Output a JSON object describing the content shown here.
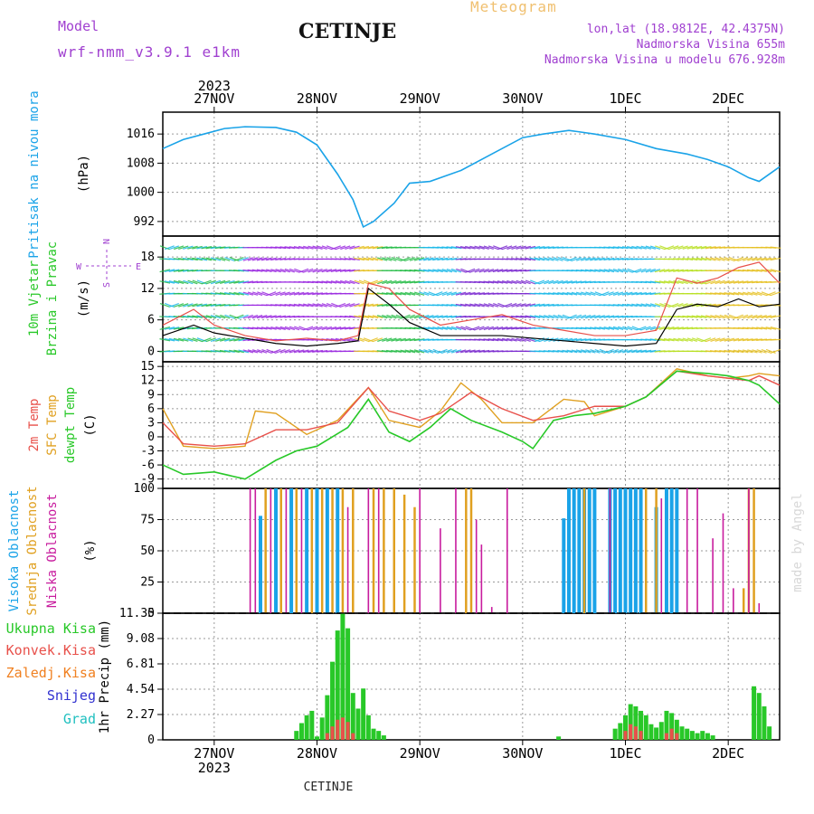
{
  "header": {
    "model_label": "Model",
    "model_name": "wrf-nmm_v3.9.1 e1km",
    "title": "CETINJE",
    "meteogram": "Meteogram",
    "lonlat": "lon,lat (18.9812E, 42.4375N)",
    "elevation": "Nadmorska Visina 655m",
    "elevation_model": "Nadmorska Visina u modelu 676.928m"
  },
  "footer": {
    "station": "CETINJE",
    "credit": "made by Angel"
  },
  "colors": {
    "pressure": "#1aa3e8",
    "wind_speed": "#000000",
    "wind_gust": "#e8504a",
    "temp_2m": "#e8504a",
    "temp_sfc": "#e0a020",
    "dewpt": "#28c828",
    "cloud_high": "#1aa3e8",
    "cloud_mid": "#e0a020",
    "cloud_low": "#c81c9e",
    "precip_total": "#28c828",
    "precip_conv": "#e8504a",
    "precip_frz": "#f08020",
    "precip_snow": "#3030d0",
    "precip_grad": "#20c0c0",
    "purple": "#a040d0"
  },
  "chart_data": [
    {
      "type": "line",
      "panel": "pressure",
      "ylabel_main": "Pritisak na nivou mora",
      "unit": "(hPa)",
      "ylim": [
        988,
        1022
      ],
      "yticks": [
        "992",
        "1000",
        "1008",
        "1016"
      ],
      "x_start_day": 26.5,
      "x_end_day": 32.5,
      "series": [
        {
          "x": [
            26.5,
            26.7,
            26.9,
            27.1,
            27.3,
            27.6,
            27.8,
            28.0,
            28.2,
            28.35,
            28.45,
            28.55,
            28.75,
            28.9,
            29.1,
            29.4,
            29.7,
            30.0,
            30.2,
            30.45,
            30.7,
            31.0,
            31.3,
            31.6,
            31.8,
            32.0,
            32.2,
            32.3,
            32.5
          ],
          "y": [
            1012,
            1014.5,
            1016,
            1017.5,
            1018,
            1017.8,
            1016.5,
            1013,
            1005,
            998,
            990.5,
            992,
            997,
            1002.5,
            1003,
            1006,
            1010.5,
            1015,
            1016,
            1017,
            1016,
            1014.5,
            1012,
            1010.5,
            1009,
            1007,
            1004,
            1003,
            1007
          ]
        }
      ]
    },
    {
      "type": "line",
      "panel": "wind",
      "ylabel_main": "10m Vjetar",
      "ylabel_sub": "Brzina i Pravac",
      "unit": "(m/s)",
      "compass": [
        "N",
        "S",
        "W",
        "E"
      ],
      "ylim": [
        -2,
        22
      ],
      "yticks": [
        "0",
        "6",
        "12",
        "18"
      ],
      "series": [
        {
          "name": "speed",
          "x": [
            26.5,
            26.8,
            27.0,
            27.3,
            27.6,
            27.9,
            28.2,
            28.4,
            28.5,
            28.7,
            28.9,
            29.2,
            29.5,
            29.8,
            30.1,
            30.4,
            30.7,
            31.0,
            31.3,
            31.5,
            31.7,
            31.9,
            32.1,
            32.3,
            32.5
          ],
          "y": [
            3,
            5,
            3.5,
            2.5,
            1.5,
            1,
            1.5,
            2,
            12,
            9,
            5.5,
            3,
            3,
            3,
            2.5,
            2,
            1.5,
            1,
            1.5,
            8,
            9,
            8.5,
            10,
            8.5,
            9
          ]
        },
        {
          "name": "gust",
          "x": [
            26.5,
            26.8,
            27.0,
            27.3,
            27.6,
            27.9,
            28.2,
            28.4,
            28.5,
            28.7,
            28.9,
            29.2,
            29.5,
            29.8,
            30.1,
            30.4,
            30.7,
            31.0,
            31.3,
            31.5,
            31.7,
            31.9,
            32.1,
            32.3,
            32.5
          ],
          "y": [
            5,
            8,
            5,
            3,
            2,
            2.5,
            2,
            3,
            13,
            12,
            8,
            5,
            6,
            7,
            5,
            4,
            3,
            3,
            4,
            14,
            13,
            14,
            16,
            17,
            13
          ]
        }
      ]
    },
    {
      "type": "line",
      "panel": "temperature",
      "ylabels": [
        "2m Temp",
        "SFC Temp",
        "dewpt Temp"
      ],
      "unit": "(C)",
      "ylim": [
        -11,
        16
      ],
      "yticks": [
        "-9",
        "-6",
        "-3",
        "0",
        "3",
        "6",
        "9",
        "12",
        "15"
      ],
      "series": [
        {
          "name": "2m Temp",
          "x": [
            26.5,
            26.7,
            27.0,
            27.3,
            27.6,
            27.9,
            28.2,
            28.5,
            28.7,
            29.0,
            29.2,
            29.5,
            29.8,
            30.1,
            30.4,
            30.7,
            31.0,
            31.2,
            31.5,
            31.8,
            32.0,
            32.2,
            32.3,
            32.5
          ],
          "y": [
            3,
            -1.5,
            -2,
            -1.5,
            1.5,
            1.5,
            3,
            10.5,
            5.5,
            3.5,
            5,
            9.5,
            6,
            3.5,
            4.5,
            6.5,
            6.5,
            8.5,
            14,
            13,
            12.5,
            12,
            13,
            11
          ]
        },
        {
          "name": "SFC Temp",
          "x": [
            26.5,
            26.7,
            27.0,
            27.3,
            27.4,
            27.6,
            27.9,
            28.2,
            28.5,
            28.7,
            29.0,
            29.2,
            29.4,
            29.6,
            29.8,
            30.1,
            30.4,
            30.6,
            30.7,
            31.0,
            31.2,
            31.5,
            31.8,
            32.0,
            32.2,
            32.3,
            32.5
          ],
          "y": [
            6,
            -2,
            -2.5,
            -2,
            5.5,
            5,
            0.5,
            3.5,
            10.5,
            3.5,
            2,
            5.5,
            11.5,
            8,
            3,
            3,
            8,
            7.5,
            4.5,
            6.5,
            8.5,
            14.5,
            13,
            12.5,
            13,
            13.5,
            13
          ]
        },
        {
          "name": "dewpt Temp",
          "x": [
            26.5,
            26.7,
            27.0,
            27.3,
            27.6,
            27.8,
            28.0,
            28.3,
            28.5,
            28.7,
            28.9,
            29.1,
            29.3,
            29.5,
            29.8,
            30.0,
            30.1,
            30.3,
            30.5,
            30.7,
            31.0,
            31.2,
            31.5,
            31.8,
            32.0,
            32.2,
            32.3,
            32.5
          ],
          "y": [
            -6,
            -8,
            -7.5,
            -9,
            -5,
            -3,
            -2,
            2,
            8,
            1,
            -1,
            2,
            6,
            3.5,
            1,
            -1,
            -2.5,
            3.5,
            4.5,
            5,
            6.5,
            8.5,
            14,
            13.5,
            13,
            12,
            11,
            7
          ]
        }
      ]
    },
    {
      "type": "bar",
      "panel": "clouds",
      "ylabels": [
        "Visoka Oblacnost",
        "Srednja Oblacnost",
        "Niska Oblacnost"
      ],
      "unit": "(%)",
      "ylim": [
        0,
        100
      ],
      "yticks": [
        "0",
        "25",
        "50",
        "75",
        "100"
      ],
      "series": [
        {
          "name": "Visoka Oblacnost",
          "x": [
            27.45,
            27.6,
            27.75,
            27.9,
            28.0,
            28.1,
            28.2,
            30.4,
            30.45,
            30.5,
            30.55,
            30.6,
            30.65,
            30.7,
            30.85,
            30.9,
            30.95,
            31.0,
            31.05,
            31.1,
            31.15,
            31.3,
            31.4,
            31.45,
            31.5
          ],
          "y": [
            78,
            100,
            100,
            100,
            100,
            100,
            100,
            76,
            100,
            100,
            100,
            100,
            100,
            100,
            100,
            100,
            100,
            100,
            100,
            100,
            100,
            85,
            100,
            100,
            100
          ]
        },
        {
          "name": "Srednja Oblacnost",
          "x": [
            27.5,
            27.65,
            27.8,
            27.95,
            28.05,
            28.15,
            28.25,
            28.35,
            28.55,
            28.65,
            28.75,
            28.85,
            28.95,
            29.45,
            29.5,
            30.6,
            31.2,
            31.3,
            32.15,
            32.2,
            32.25
          ],
          "y": [
            100,
            100,
            100,
            100,
            100,
            100,
            100,
            100,
            100,
            100,
            100,
            95,
            85,
            100,
            100,
            100,
            100,
            100,
            20,
            100,
            100
          ]
        },
        {
          "name": "Niska Oblacnost",
          "x": [
            27.35,
            27.4,
            27.55,
            27.7,
            27.85,
            28.3,
            28.5,
            28.6,
            29.0,
            29.2,
            29.35,
            29.55,
            29.6,
            29.7,
            29.85,
            30.85,
            31.35,
            31.6,
            31.7,
            31.85,
            31.95,
            32.05,
            32.2,
            32.3
          ],
          "y": [
            100,
            100,
            100,
            100,
            100,
            85,
            100,
            100,
            100,
            68,
            100,
            75,
            55,
            5,
            100,
            100,
            92,
            100,
            100,
            60,
            80,
            20,
            100,
            8
          ]
        }
      ]
    },
    {
      "type": "bar",
      "panel": "precipitation",
      "ylabels": [
        "Ukupna Kisa",
        "Konvek.Kisa",
        "Zaledj.Kisa",
        "Snijeg",
        "Grad"
      ],
      "unit": "1hr Precip (mm)",
      "ylim": [
        0,
        11.35
      ],
      "yticks": [
        "0",
        "2.27",
        "4.54",
        "6.81",
        "9.08",
        "11.35"
      ],
      "xticks": [
        "27NOV",
        "28NOV",
        "29NOV",
        "30NOV",
        "1DEC",
        "2DEC"
      ],
      "year": "2023",
      "series": [
        {
          "name": "Ukupna Kisa",
          "x": [
            27.8,
            27.85,
            27.9,
            27.95,
            28.0,
            28.05,
            28.1,
            28.15,
            28.2,
            28.25,
            28.3,
            28.35,
            28.4,
            28.45,
            28.5,
            28.55,
            28.6,
            28.65,
            30.35,
            30.9,
            30.95,
            31.0,
            31.05,
            31.1,
            31.15,
            31.2,
            31.25,
            31.3,
            31.35,
            31.4,
            31.45,
            31.5,
            31.55,
            31.6,
            31.65,
            31.7,
            31.75,
            31.8,
            31.85,
            32.25,
            32.3,
            32.35,
            32.4
          ],
          "y": [
            0.8,
            1.5,
            2.2,
            2.6,
            0.3,
            2.0,
            4.0,
            7.0,
            9.8,
            11.3,
            10.0,
            4.2,
            2.8,
            4.6,
            2.2,
            1.0,
            0.8,
            0.4,
            0.3,
            1.0,
            1.5,
            2.2,
            3.2,
            3.0,
            2.6,
            2.2,
            1.4,
            1.1,
            1.6,
            2.6,
            2.4,
            1.8,
            1.2,
            1.0,
            0.8,
            0.6,
            0.8,
            0.6,
            0.4,
            4.8,
            4.2,
            3.0,
            1.2
          ]
        },
        {
          "name": "Konvek.Kisa",
          "x": [
            28.1,
            28.15,
            28.2,
            28.25,
            28.3,
            28.35,
            31.0,
            31.05,
            31.1,
            31.15,
            31.4,
            31.45,
            31.5
          ],
          "y": [
            0.6,
            1.2,
            1.8,
            2.0,
            1.6,
            0.6,
            0.8,
            1.4,
            1.2,
            0.8,
            0.6,
            1.0,
            0.6
          ]
        }
      ]
    }
  ]
}
